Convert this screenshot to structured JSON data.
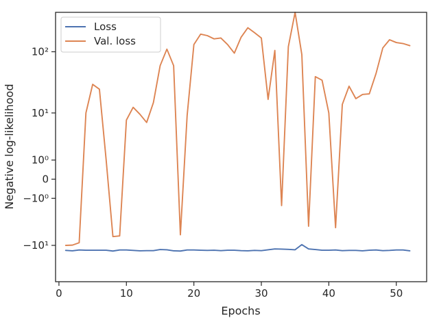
{
  "chart_data": {
    "type": "line",
    "title": "",
    "xlabel": "Epochs",
    "ylabel": "Negative log-likelihood",
    "xlim": [
      -0.5,
      54.5
    ],
    "xticks": [
      0,
      10,
      20,
      30,
      40,
      50
    ],
    "xtick_labels": [
      "0",
      "10",
      "20",
      "30",
      "40",
      "50"
    ],
    "yscale": "symlog",
    "ylim": [
      -40,
      420
    ],
    "yticks": [
      -10,
      -1,
      0,
      1,
      10,
      100
    ],
    "ytick_labels": [
      "−10¹",
      "−10⁰",
      "0",
      "10⁰",
      "10¹",
      "10²"
    ],
    "grid": false,
    "legend_position": "top-left",
    "colors": {
      "axis": "#262626",
      "Loss": "#4c72b0",
      "Val. loss": "#dd8452"
    },
    "x": [
      1,
      2,
      3,
      4,
      5,
      6,
      7,
      8,
      9,
      10,
      11,
      12,
      13,
      14,
      15,
      16,
      17,
      18,
      19,
      20,
      21,
      22,
      23,
      24,
      25,
      26,
      27,
      28,
      29,
      30,
      31,
      32,
      33,
      34,
      35,
      36,
      37,
      38,
      39,
      40,
      41,
      42,
      43,
      44,
      45,
      46,
      47,
      48,
      49,
      50,
      51,
      52
    ],
    "series": [
      {
        "name": "Loss",
        "values": [
          -12.2,
          -12.4,
          -12.0,
          -12.1,
          -12.1,
          -12.1,
          -12.1,
          -12.5,
          -12.0,
          -12.0,
          -12.2,
          -12.4,
          -12.3,
          -12.3,
          -11.8,
          -11.9,
          -12.4,
          -12.5,
          -12.0,
          -12.0,
          -12.1,
          -12.2,
          -12.1,
          -12.3,
          -12.1,
          -12.1,
          -12.3,
          -12.4,
          -12.2,
          -12.3,
          -11.9,
          -11.5,
          -11.6,
          -11.7,
          -11.9,
          -9.7,
          -11.5,
          -11.8,
          -12.1,
          -12.1,
          -12.0,
          -12.3,
          -12.2,
          -12.2,
          -12.4,
          -12.1,
          -12.0,
          -12.3,
          -12.2,
          -12.0,
          -12.0,
          -12.4
        ]
      },
      {
        "name": "Val. loss",
        "values": [
          -10.0,
          -9.9,
          -9.0,
          10.0,
          30.0,
          25.0,
          1.0,
          -7.0,
          -6.8,
          7.5,
          12.5,
          9.5,
          6.8,
          15.0,
          60.0,
          110.0,
          60.0,
          -6.5,
          9.0,
          130.0,
          190.0,
          180.0,
          160.0,
          165.0,
          130.0,
          95.0,
          170.0,
          240.0,
          200.0,
          165.0,
          17.0,
          105.0,
          -1.6,
          120.0,
          420.0,
          90.0,
          -4.5,
          40.0,
          35.0,
          10.0,
          -4.8,
          14.0,
          28.0,
          17.5,
          20.5,
          21.0,
          45.0,
          115.0,
          155.0,
          140.0,
          135.0,
          125.0
        ]
      }
    ]
  }
}
